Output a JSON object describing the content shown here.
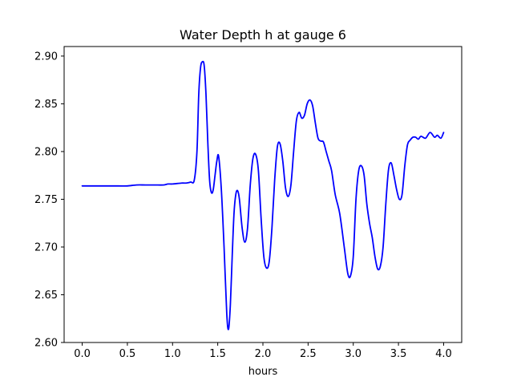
{
  "chart_data": {
    "type": "line",
    "title": "Water Depth h at gauge 6",
    "xlabel": "hours",
    "ylabel": "",
    "xlim": [
      -0.2,
      4.2
    ],
    "ylim": [
      2.6,
      2.91
    ],
    "xticks": [
      0.0,
      0.5,
      1.0,
      1.5,
      2.0,
      2.5,
      3.0,
      3.5,
      4.0
    ],
    "xtick_labels": [
      "0.0",
      "0.5",
      "1.0",
      "1.5",
      "2.0",
      "2.5",
      "3.0",
      "3.5",
      "4.0"
    ],
    "yticks": [
      2.6,
      2.65,
      2.7,
      2.75,
      2.8,
      2.85,
      2.9
    ],
    "ytick_labels": [
      "2.60",
      "2.65",
      "2.70",
      "2.75",
      "2.80",
      "2.85",
      "2.90"
    ],
    "grid": false,
    "series": [
      {
        "color": "#0000ff",
        "x": [
          0.0,
          0.2,
          0.4,
          0.5,
          0.6,
          0.7,
          0.8,
          0.9,
          0.95,
          1.0,
          1.1,
          1.15,
          1.2,
          1.24,
          1.27,
          1.29,
          1.31,
          1.33,
          1.35,
          1.37,
          1.39,
          1.41,
          1.43,
          1.45,
          1.47,
          1.49,
          1.51,
          1.54,
          1.57,
          1.6,
          1.62,
          1.64,
          1.66,
          1.68,
          1.7,
          1.72,
          1.74,
          1.77,
          1.8,
          1.83,
          1.86,
          1.89,
          1.92,
          1.95,
          1.98,
          2.01,
          2.04,
          2.07,
          2.1,
          2.13,
          2.16,
          2.19,
          2.22,
          2.25,
          2.28,
          2.31,
          2.34,
          2.37,
          2.4,
          2.43,
          2.46,
          2.49,
          2.52,
          2.55,
          2.58,
          2.61,
          2.64,
          2.67,
          2.7,
          2.73,
          2.76,
          2.8,
          2.85,
          2.9,
          2.94,
          2.97,
          3.0,
          3.03,
          3.06,
          3.09,
          3.12,
          3.15,
          3.18,
          3.21,
          3.24,
          3.27,
          3.3,
          3.33,
          3.36,
          3.39,
          3.42,
          3.45,
          3.48,
          3.51,
          3.54,
          3.57,
          3.6,
          3.63,
          3.66,
          3.69,
          3.72,
          3.75,
          3.8,
          3.85,
          3.9,
          3.93,
          3.97,
          4.0
        ],
        "y": [
          2.764,
          2.764,
          2.764,
          2.764,
          2.765,
          2.765,
          2.765,
          2.765,
          2.766,
          2.766,
          2.767,
          2.767,
          2.768,
          2.77,
          2.8,
          2.86,
          2.888,
          2.894,
          2.89,
          2.86,
          2.81,
          2.77,
          2.757,
          2.76,
          2.775,
          2.79,
          2.795,
          2.76,
          2.7,
          2.63,
          2.614,
          2.64,
          2.69,
          2.735,
          2.755,
          2.759,
          2.75,
          2.72,
          2.705,
          2.72,
          2.765,
          2.793,
          2.797,
          2.78,
          2.73,
          2.69,
          2.678,
          2.685,
          2.72,
          2.77,
          2.805,
          2.808,
          2.79,
          2.762,
          2.753,
          2.765,
          2.8,
          2.832,
          2.841,
          2.835,
          2.838,
          2.85,
          2.854,
          2.848,
          2.83,
          2.814,
          2.811,
          2.81,
          2.8,
          2.79,
          2.78,
          2.755,
          2.735,
          2.7,
          2.672,
          2.67,
          2.69,
          2.75,
          2.78,
          2.785,
          2.775,
          2.745,
          2.725,
          2.71,
          2.69,
          2.677,
          2.68,
          2.7,
          2.745,
          2.781,
          2.788,
          2.775,
          2.76,
          2.75,
          2.755,
          2.785,
          2.807,
          2.812,
          2.815,
          2.815,
          2.813,
          2.816,
          2.814,
          2.82,
          2.815,
          2.817,
          2.814,
          2.82
        ]
      }
    ]
  }
}
